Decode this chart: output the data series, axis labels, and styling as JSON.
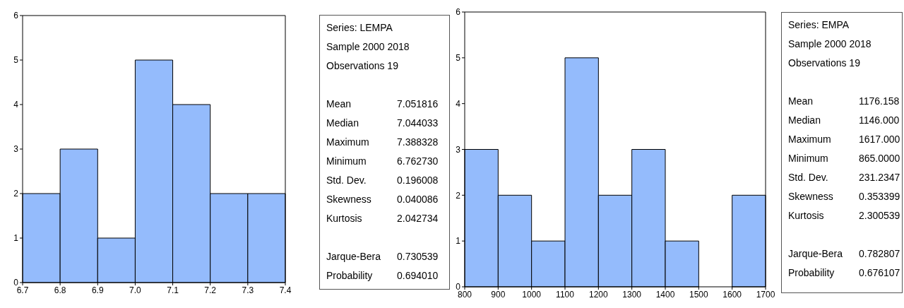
{
  "chart_data": [
    {
      "type": "histogram",
      "bins": [
        6.7,
        6.8,
        6.9,
        7.0,
        7.1,
        7.2,
        7.3,
        7.4
      ],
      "values": [
        2,
        3,
        1,
        5,
        4,
        2,
        2
      ],
      "color": "#94bbfc",
      "xlim": [
        6.7,
        7.4
      ],
      "xticks": [
        6.7,
        6.8,
        6.9,
        {
          "value": 7.0,
          "label": "7.0"
        },
        7.1,
        7.2,
        7.3,
        7.4
      ],
      "ylim": [
        0,
        6
      ],
      "yticks": [
        0,
        1,
        2,
        3,
        4,
        5,
        6
      ],
      "grid": false
    },
    {
      "type": "other",
      "annotations": [
        "Series: LEMPA",
        "Sample 2000 2018",
        "Observations 19",
        "Mean",
        "7.051816",
        "Median",
        "7.044033",
        "Maximum",
        "7.388328",
        "Minimum",
        "6.762730",
        "Std. Dev.",
        "0.196008",
        "Skewness",
        "0.040086",
        "Kurtosis",
        "2.042734",
        "Jarque-Bera",
        "0.730539",
        "Probability",
        "0.694010"
      ]
    },
    {
      "type": "histogram",
      "bins": [
        800,
        900,
        1000,
        1100,
        1200,
        1300,
        1400,
        1500,
        1600,
        1700
      ],
      "values": [
        3,
        2,
        1,
        5,
        2,
        3,
        1,
        0,
        2
      ],
      "color": "#94bbfc",
      "xlim": [
        800,
        1700
      ],
      "xticks": [
        800,
        900,
        1000,
        1100,
        1200,
        1300,
        1400,
        1500,
        1600,
        1700
      ],
      "ylim": [
        0,
        6
      ],
      "yticks": [
        0,
        1,
        2,
        3,
        4,
        5,
        6
      ],
      "grid": false
    },
    {
      "type": "other",
      "annotations": [
        "Series: EMPA",
        "Sample 2000 2018",
        "Observations 19",
        "Mean",
        "1176.158",
        "Median",
        "1146.000",
        "Maximum",
        "1617.000",
        "Minimum",
        "865.0000",
        "Std. Dev.",
        "231.2347",
        "Skewness",
        "0.353399",
        "Kurtosis",
        "2.300539",
        "Jarque-Bera",
        "0.782807",
        "Probability",
        "0.676107"
      ]
    }
  ]
}
